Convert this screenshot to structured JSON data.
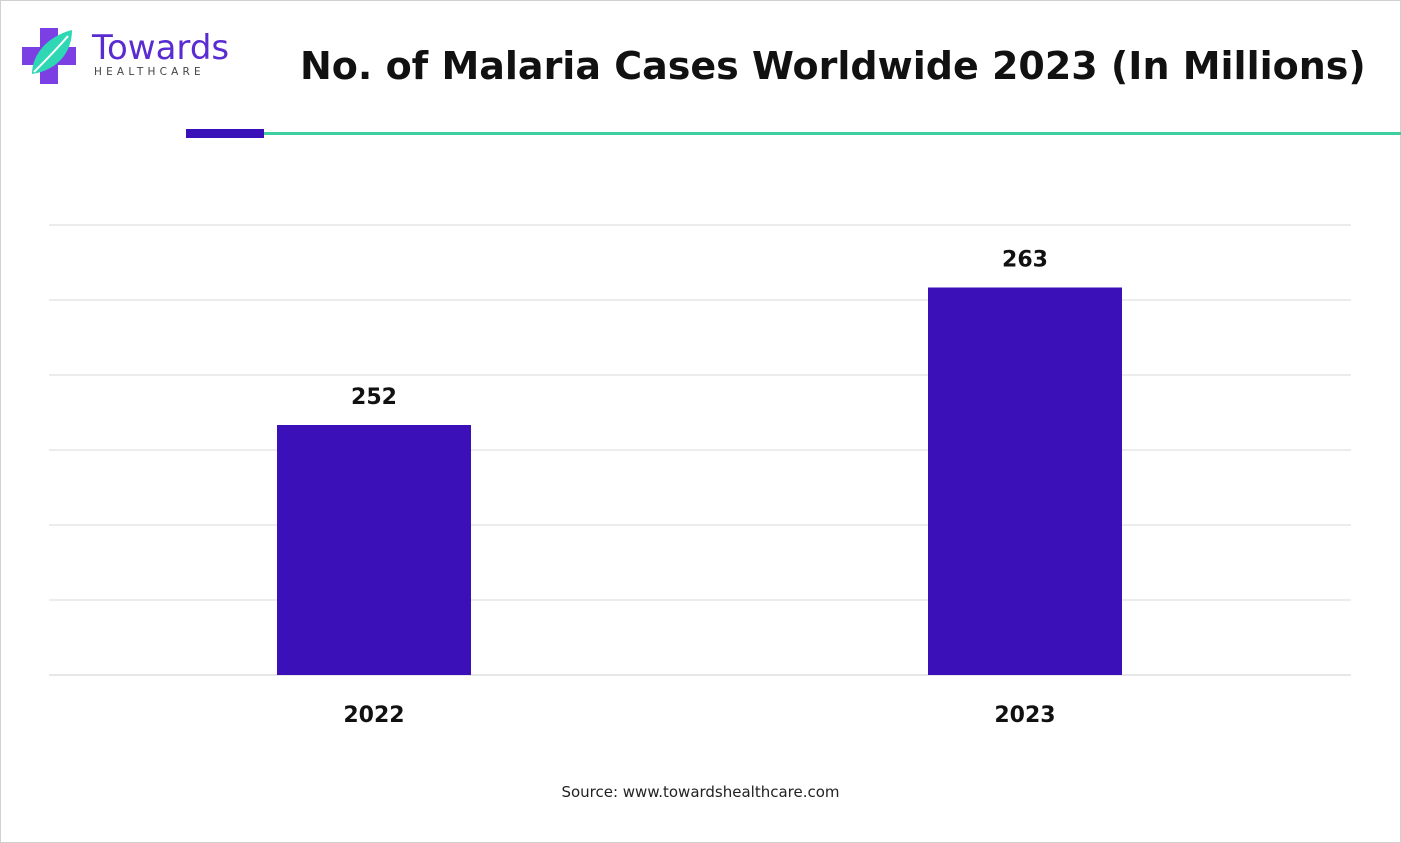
{
  "brand": {
    "name": "Towards",
    "sub": "HEALTHCARE"
  },
  "colors": {
    "bar": "#3b10b8",
    "grid": "#d9d9d9",
    "accent_rule": "#3a10b8",
    "teal_rule": "#3ecfa0",
    "logo_purple": "#7b3fe4",
    "logo_teal": "#2fd8b4"
  },
  "source": "Source: www.towardshealthcare.com",
  "chart_data": {
    "type": "bar",
    "title": "No. of Malaria Cases Worldwide 2023 (In Millions)",
    "categories": [
      "2022",
      "2023"
    ],
    "values": [
      252,
      263
    ],
    "xlabel": "",
    "ylabel": "",
    "ylim": [
      232,
      268
    ],
    "grid": true,
    "legend": "none",
    "data_labels": true
  }
}
